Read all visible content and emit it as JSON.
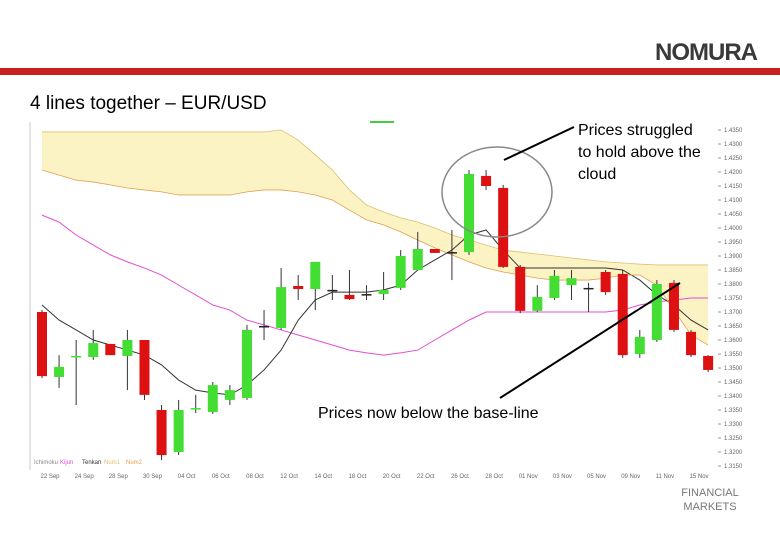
{
  "header": {
    "logo": "NOMURA",
    "title": "4 lines together – EUR/USD"
  },
  "chart_data": {
    "type": "candlestick",
    "categories": [
      "22 Sep",
      null,
      "24 Sep",
      null,
      "28 Sep",
      null,
      "30 Sep",
      null,
      "04 Oct",
      null,
      "06 Oct",
      null,
      "08 Oct",
      null,
      "12 Oct",
      null,
      "14 Oct",
      null,
      "18 Oct",
      null,
      "20 Oct",
      null,
      "22 Oct",
      null,
      "26 Oct",
      null,
      "28 Oct",
      null,
      "01 Nov",
      null,
      "03 Nov",
      null,
      "05 Nov",
      null,
      "09 Nov",
      null,
      "11 Nov",
      null,
      "15 Nov",
      null
    ],
    "open": [
      1.37,
      1.3468,
      1.3539,
      1.3539,
      1.3586,
      1.3543,
      1.36,
      1.335,
      1.32,
      1.3354,
      1.3343,
      1.3386,
      1.3393,
      1.365,
      1.3643,
      1.3793,
      1.3782,
      1.3779,
      1.3761,
      1.3764,
      1.3764,
      1.3786,
      1.385,
      1.3925,
      1.3914,
      1.3914,
      1.4186,
      1.4143,
      1.3861,
      1.3704,
      1.375,
      1.3796,
      1.3786,
      1.3843,
      1.3836,
      1.355,
      1.36,
      1.3804,
      1.3629,
      1.3543
    ],
    "high": [
      1.3707,
      1.3546,
      1.36,
      1.3636,
      1.3586,
      1.3636,
      1.36,
      1.3368,
      1.3386,
      1.3404,
      1.345,
      1.3439,
      1.3654,
      1.3707,
      1.3857,
      1.3832,
      1.3879,
      1.3832,
      1.385,
      1.3796,
      1.3843,
      1.3921,
      1.3986,
      1.3925,
      1.3993,
      1.4207,
      1.4207,
      1.4154,
      1.3868,
      1.3796,
      1.385,
      1.385,
      1.3804,
      1.385,
      1.385,
      1.3636,
      1.3814,
      1.3814,
      1.3636,
      1.3546
    ],
    "low": [
      1.3464,
      1.3429,
      1.3368,
      1.3529,
      1.3546,
      1.3421,
      1.3386,
      1.3171,
      1.3189,
      1.3339,
      1.3336,
      1.3368,
      1.3386,
      1.36,
      1.3636,
      1.3743,
      1.3707,
      1.3743,
      1.3743,
      1.3743,
      1.3743,
      1.3779,
      1.385,
      1.3911,
      1.3814,
      1.3904,
      1.4136,
      1.3857,
      1.3696,
      1.37,
      1.3743,
      1.3743,
      1.37,
      1.3761,
      1.3536,
      1.3536,
      1.3593,
      1.3629,
      1.3539,
      1.3486
    ],
    "close": [
      1.3471,
      1.3504,
      1.3543,
      1.3589,
      1.3546,
      1.36,
      1.3404,
      1.3189,
      1.335,
      1.3357,
      1.3439,
      1.3421,
      1.3636,
      1.365,
      1.3789,
      1.3782,
      1.3879,
      1.3779,
      1.3746,
      1.3764,
      1.3779,
      1.39,
      1.3925,
      1.3911,
      1.3914,
      1.4193,
      1.415,
      1.3861,
      1.3704,
      1.3754,
      1.3829,
      1.3821,
      1.3786,
      1.3771,
      1.3546,
      1.3611,
      1.38,
      1.3636,
      1.3546,
      1.3493
    ],
    "up_color": "#44dd33",
    "down_color": "#dd1111",
    "doji_color": "#222222",
    "legend_title": "Ichimoku",
    "series": [
      {
        "name": "Kijun",
        "color": "#e050d0",
        "values": [
          1.4046,
          1.4021,
          1.3975,
          1.3939,
          1.3904,
          1.3879,
          1.3857,
          1.3832,
          1.3796,
          1.3761,
          1.3725,
          1.3707,
          1.3671,
          1.3654,
          1.3636,
          1.3618,
          1.36,
          1.3582,
          1.3564,
          1.3554,
          1.3546,
          1.3554,
          1.3564,
          1.36,
          1.3636,
          1.3671,
          1.37,
          1.37,
          1.37,
          1.37,
          1.37,
          1.37,
          1.37,
          1.37,
          1.3707,
          1.3725,
          1.3736,
          1.3743,
          1.375,
          1.375
        ]
      },
      {
        "name": "Tenkan",
        "color": "#333333",
        "values": [
          1.3725,
          1.3671,
          1.3636,
          1.36,
          1.3582,
          1.3564,
          1.3546,
          1.3511,
          1.3457,
          1.3421,
          1.3411,
          1.3404,
          1.3439,
          1.3493,
          1.3564,
          1.3671,
          1.3743,
          1.3771,
          1.3771,
          1.3771,
          1.3779,
          1.3796,
          1.385,
          1.3886,
          1.3921,
          1.3975,
          1.3993,
          1.3921,
          1.3857,
          1.3857,
          1.3857,
          1.3857,
          1.3857,
          1.3857,
          1.385,
          1.3814,
          1.3761,
          1.3725,
          1.3671,
          1.3636
        ]
      },
      {
        "name": "Num1",
        "color": "#d8c070",
        "cloud": true,
        "values": [
          1.4343,
          1.4343,
          1.4343,
          1.4343,
          1.4343,
          1.4343,
          1.4343,
          1.4343,
          1.4343,
          1.4343,
          1.4343,
          1.4343,
          1.4343,
          1.4343,
          1.435,
          1.4314,
          1.4261,
          1.4207,
          1.4136,
          1.4082,
          1.4057,
          1.4036,
          1.4021,
          1.4,
          1.3975,
          1.3957,
          1.3939,
          1.3921,
          1.3914,
          1.3907,
          1.39,
          1.3893,
          1.3886,
          1.3879,
          1.3875,
          1.3871,
          1.3868,
          1.3868,
          1.3868,
          1.3868
        ]
      },
      {
        "name": "Num2",
        "color": "#e0a050",
        "cloud": true,
        "values": [
          1.4207,
          1.4189,
          1.4171,
          1.4164,
          1.4154,
          1.4143,
          1.4136,
          1.4129,
          1.4118,
          1.4118,
          1.4118,
          1.4118,
          1.4129,
          1.4136,
          1.4136,
          1.4129,
          1.4118,
          1.41,
          1.4064,
          1.4029,
          1.4011,
          1.3986,
          1.3957,
          1.3929,
          1.3904,
          1.3879,
          1.3857,
          1.3843,
          1.3832,
          1.3821,
          1.3814,
          1.3814,
          1.3814,
          1.3821,
          1.3832,
          1.3832,
          1.3796,
          1.3707,
          1.3618,
          1.3582
        ]
      }
    ],
    "cloud_color": "#fcf3c4",
    "ylim": [
      1.315,
      1.435
    ],
    "yticks": [
      {
        "value": 1.435,
        "label": "1.4350"
      },
      {
        "value": 1.43,
        "label": "1.4300"
      },
      {
        "value": 1.425,
        "label": "1.4250"
      },
      {
        "value": 1.42,
        "label": "1.4200"
      },
      {
        "value": 1.415,
        "label": "1.4150"
      },
      {
        "value": 1.41,
        "label": "1.4100"
      },
      {
        "value": 1.405,
        "label": "1.4050"
      },
      {
        "value": 1.4,
        "label": "1.4000"
      },
      {
        "value": 1.395,
        "label": "1.3950"
      },
      {
        "value": 1.39,
        "label": "1.3900"
      },
      {
        "value": 1.385,
        "label": "1.3850"
      },
      {
        "value": 1.38,
        "label": "1.3800"
      },
      {
        "value": 1.375,
        "label": "1.3750"
      },
      {
        "value": 1.37,
        "label": "1.3700"
      },
      {
        "value": 1.365,
        "label": "1.3650"
      },
      {
        "value": 1.36,
        "label": "1.3600"
      },
      {
        "value": 1.355,
        "label": "1.3550"
      },
      {
        "value": 1.35,
        "label": "1.3500"
      },
      {
        "value": 1.345,
        "label": "1.3450"
      },
      {
        "value": 1.34,
        "label": "1.3400"
      },
      {
        "value": 1.335,
        "label": "1.3350"
      },
      {
        "value": 1.33,
        "label": "1.3300"
      },
      {
        "value": 1.325,
        "label": "1.3250"
      },
      {
        "value": 1.32,
        "label": "1.3200"
      },
      {
        "value": 1.315,
        "label": "1.3150"
      }
    ],
    "annotations": [
      "Prices struggled to hold above the cloud",
      "Prices now below the base-line"
    ]
  },
  "footer": {
    "text": "FINANCIAL MARKETS"
  }
}
